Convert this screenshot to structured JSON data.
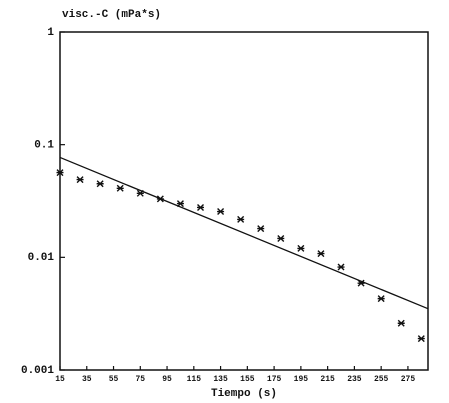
{
  "chart_data": {
    "type": "scatter",
    "title": "visc.-C (mPa*s)",
    "x_label": "Tiempo (s)",
    "xlim": [
      15,
      290
    ],
    "ylim": [
      0.001,
      1
    ],
    "y_scale": "log",
    "xticks": [
      15,
      35,
      55,
      75,
      95,
      115,
      135,
      155,
      175,
      195,
      215,
      235,
      255,
      275
    ],
    "yticks": [
      0.001,
      0.01,
      0.1,
      1
    ],
    "series": [
      {
        "kind": "points",
        "color": "#111111",
        "x": [
          15,
          30,
          45,
          60,
          75,
          90,
          105,
          120,
          135,
          150,
          165,
          180,
          195,
          210,
          225,
          240,
          255,
          270,
          285
        ],
        "values": [
          0.0565,
          0.049,
          0.045,
          0.041,
          0.037,
          0.033,
          0.03,
          0.0277,
          0.0255,
          0.0217,
          0.018,
          0.0147,
          0.012,
          0.0108,
          0.0082,
          0.0059,
          0.0043,
          0.0026,
          0.0019
        ]
      },
      {
        "kind": "line",
        "color": "#111111",
        "x": [
          15,
          290
        ],
        "values": [
          0.077,
          0.0035
        ]
      }
    ]
  }
}
